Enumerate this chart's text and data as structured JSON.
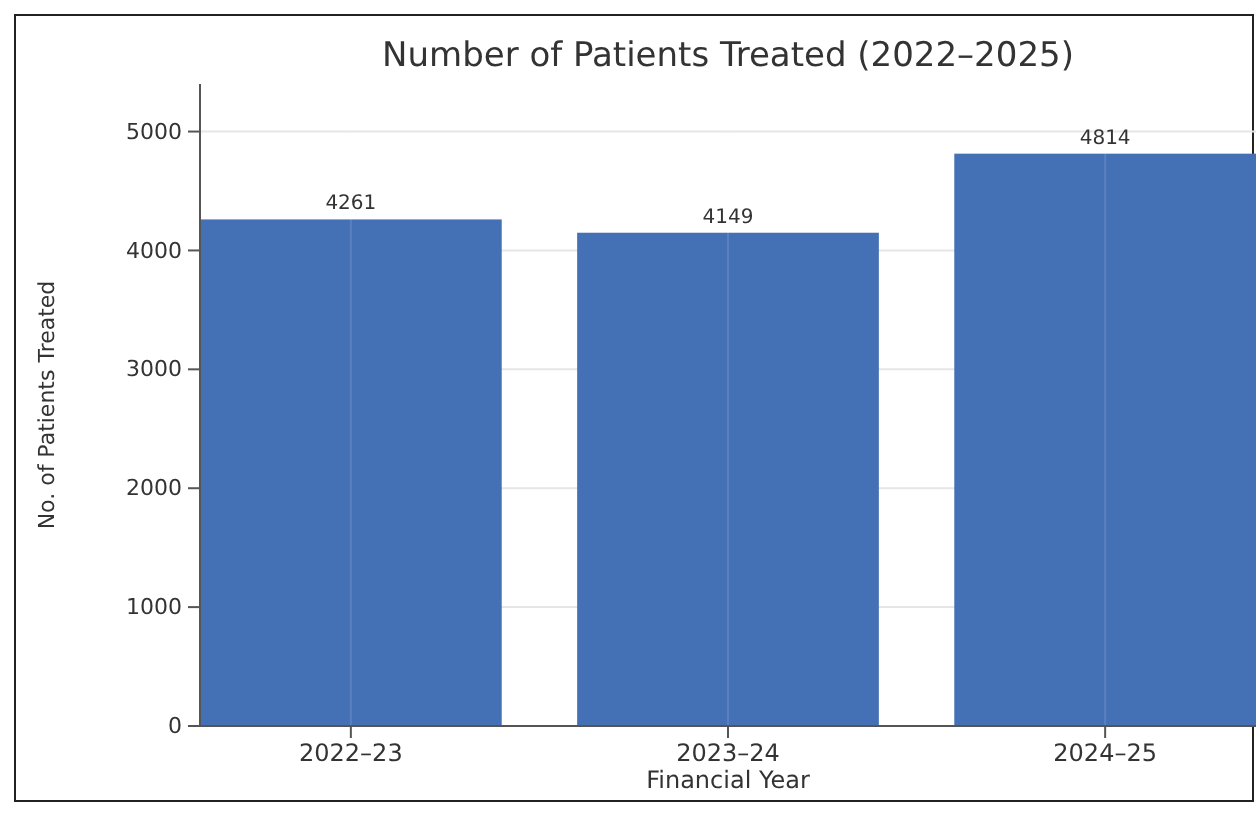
{
  "chart_data": {
    "type": "bar",
    "title": "Number of Patients Treated (2022–2025)",
    "xlabel": "Financial Year",
    "ylabel": "No. of Patients Treated",
    "categories": [
      "2022–23",
      "2023–24",
      "2024–25"
    ],
    "values": [
      4261,
      4149,
      4814
    ],
    "color": "#4470b5",
    "ylim": [
      0,
      5400
    ],
    "yticks": [
      0,
      1000,
      2000,
      3000,
      4000,
      5000
    ],
    "grid": true,
    "data_labels": true
  }
}
